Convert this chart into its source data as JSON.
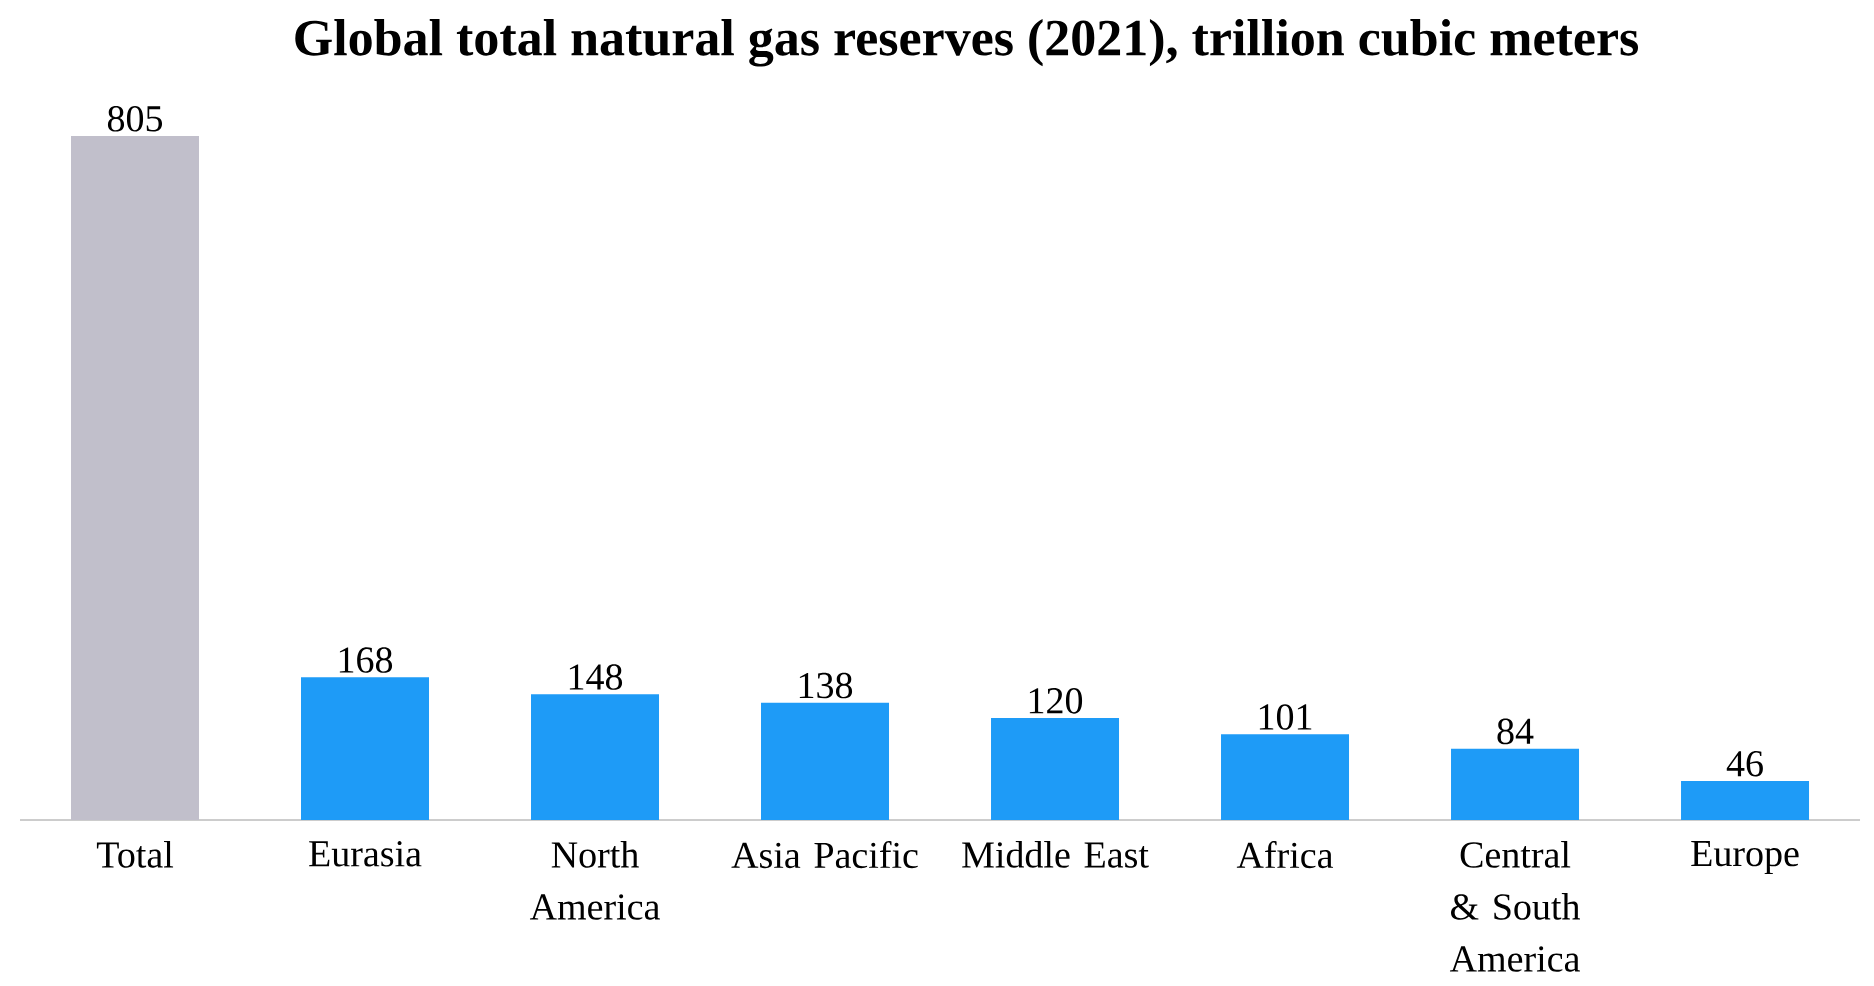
{
  "chart_data": {
    "type": "bar",
    "title": "Global total natural gas reserves (2021), trillion cubic meters",
    "categories": [
      "Total",
      "Eurasia",
      "North America",
      "Asia Pacific",
      "Middle East",
      "Africa",
      "Central & South America",
      "Europe"
    ],
    "values": [
      805,
      168,
      148,
      138,
      120,
      101,
      84,
      46
    ],
    "colors": [
      "#c1bfcb",
      "#1e9bf7",
      "#1e9bf7",
      "#1e9bf7",
      "#1e9bf7",
      "#1e9bf7",
      "#1e9bf7",
      "#1e9bf7"
    ],
    "data_labels": true
  }
}
